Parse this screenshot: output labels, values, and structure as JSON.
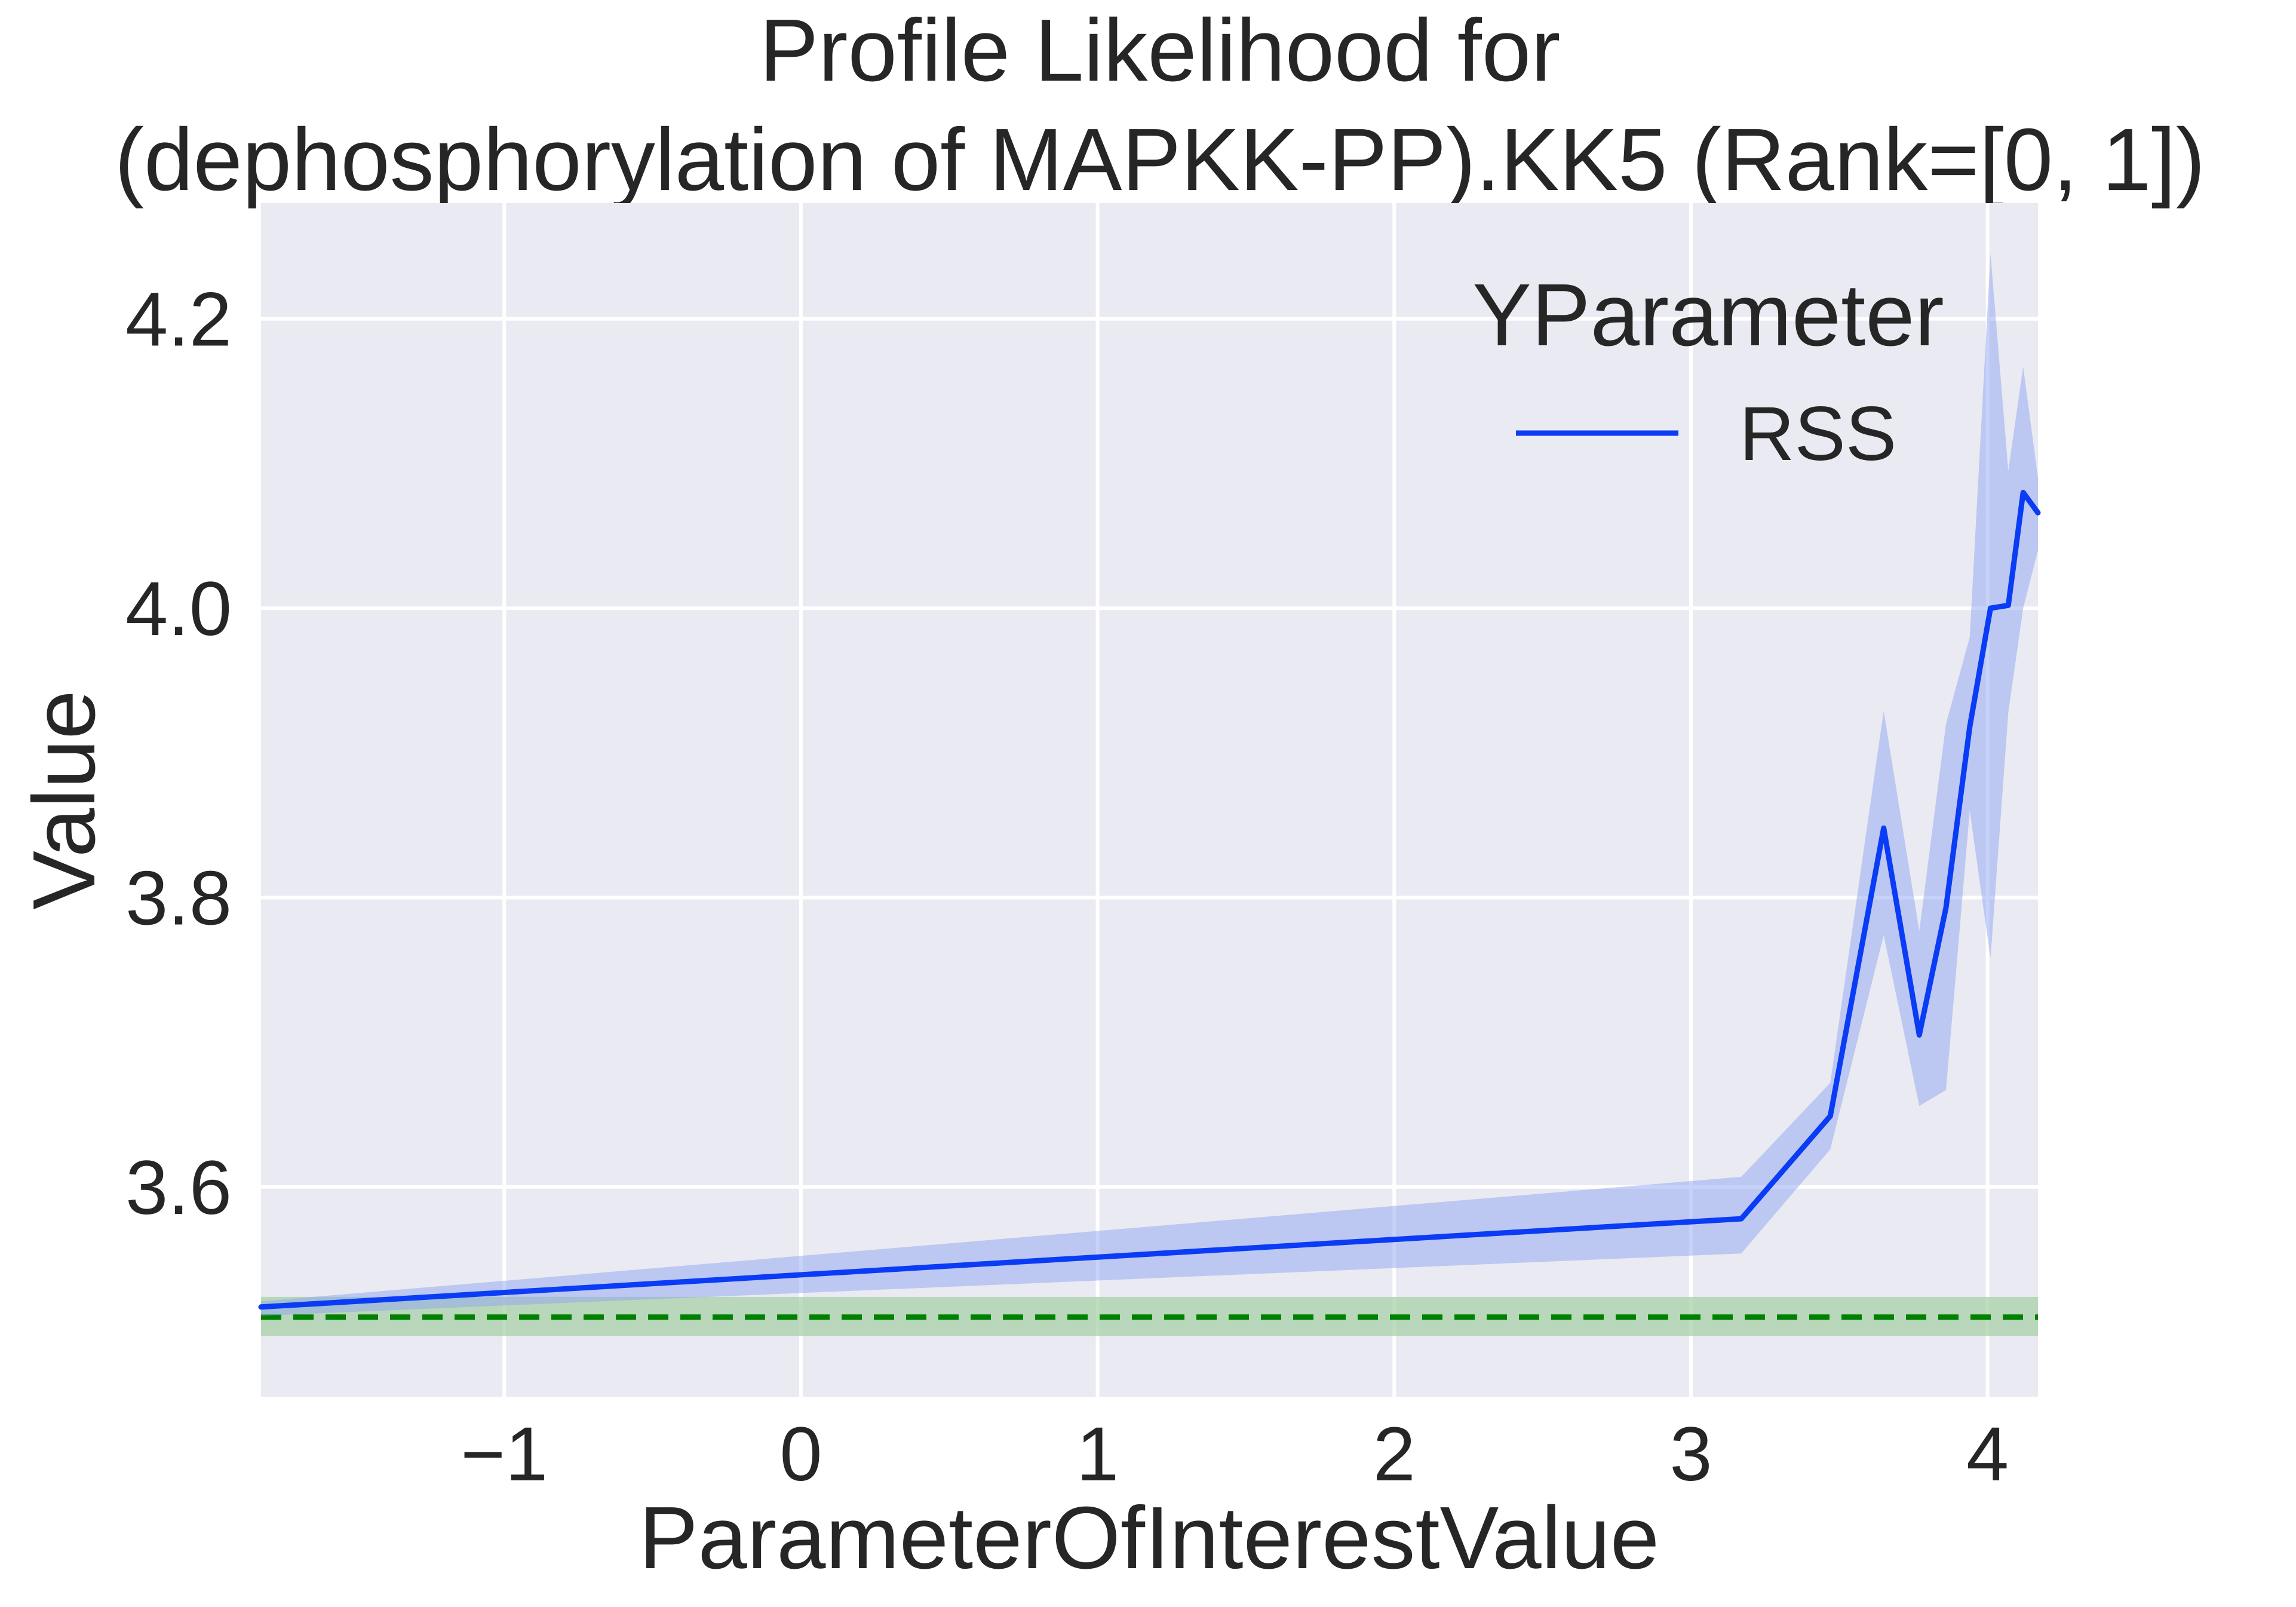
{
  "chart_data": {
    "type": "line",
    "title_lines": [
      "Profile Likelihood for",
      "(dephosphorylation of MAPKK-PP).KK5 (Rank=[0, 1])"
    ],
    "xlabel": "ParameterOfInterestValue",
    "ylabel": "Value",
    "xlim": [
      -1.82,
      4.17
    ],
    "ylim": [
      3.455,
      4.28
    ],
    "xticks": [
      -1,
      0,
      1,
      2,
      3,
      4
    ],
    "xtick_labels": [
      "−1",
      "0",
      "1",
      "2",
      "3",
      "4"
    ],
    "yticks": [
      3.6,
      3.8,
      4.0,
      4.2
    ],
    "ytick_labels": [
      "3.6",
      "3.8",
      "4.0",
      "4.2"
    ],
    "grid": true,
    "background_color": "#eaeaf2",
    "legend": {
      "title": "YParameter",
      "placement": "top-right"
    },
    "series": [
      {
        "name": "RSS",
        "color": "#0a3cf5",
        "band_color": "#8da6f0",
        "x": [
          -1.82,
          3.17,
          3.47,
          3.65,
          3.77,
          3.86,
          3.94,
          4.01,
          4.07,
          4.12,
          4.17
        ],
        "y": [
          3.517,
          3.578,
          3.649,
          3.848,
          3.705,
          3.793,
          3.918,
          4.0,
          4.002,
          4.08,
          4.066
        ],
        "ci_upper": [
          3.521,
          3.607,
          3.672,
          3.929,
          3.777,
          3.92,
          3.98,
          4.245,
          4.095,
          4.167,
          4.09
        ],
        "ci_lower": [
          3.511,
          3.554,
          3.626,
          3.774,
          3.656,
          3.667,
          3.86,
          3.758,
          3.928,
          4.0,
          4.04
        ]
      }
    ],
    "reference_line": {
      "y": 3.51,
      "band": [
        3.497,
        3.524
      ],
      "color": "#008000",
      "band_color": "#a8d0a8",
      "style": "dashed"
    }
  }
}
